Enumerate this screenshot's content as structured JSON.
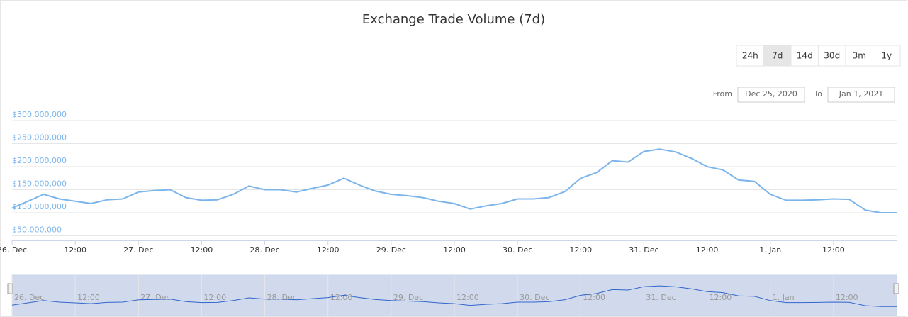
{
  "chart_data": {
    "type": "line",
    "title": "Exchange Trade Volume (7d)",
    "categories": [
      "26. Dec",
      null,
      null,
      null,
      "12:00",
      null,
      null,
      null,
      "27. Dec",
      null,
      null,
      null,
      "12:00",
      null,
      null,
      null,
      "28. Dec",
      null,
      null,
      null,
      "12:00",
      null,
      null,
      null,
      "29. Dec",
      null,
      null,
      null,
      "12:00",
      null,
      null,
      null,
      "30. Dec",
      null,
      null,
      null,
      "12:00",
      null,
      null,
      null,
      "31. Dec",
      null,
      null,
      null,
      "12:00",
      null,
      null,
      null,
      "1. Jan",
      null,
      null,
      null,
      "12:00",
      null,
      null,
      null,
      null
    ],
    "values": [
      110000000,
      125000000,
      140000000,
      130000000,
      125000000,
      120000000,
      128000000,
      130000000,
      145000000,
      148000000,
      150000000,
      133000000,
      127000000,
      128000000,
      140000000,
      158000000,
      150000000,
      150000000,
      145000000,
      153000000,
      160000000,
      175000000,
      160000000,
      147000000,
      140000000,
      137000000,
      133000000,
      125000000,
      120000000,
      108000000,
      115000000,
      120000000,
      130000000,
      130000000,
      133000000,
      146000000,
      175000000,
      187000000,
      213000000,
      210000000,
      233000000,
      238000000,
      232000000,
      218000000,
      200000000,
      193000000,
      171000000,
      168000000,
      140000000,
      127000000,
      127000000,
      128000000,
      130000000,
      129000000,
      106000000,
      100000000,
      100000000
    ],
    "color": "#7cb5ec",
    "ylim": [
      40000000,
      300000000
    ],
    "yticks": [
      {
        "value": 50000000,
        "label": "$50,000,000"
      },
      {
        "value": 100000000,
        "label": "$100,000,000"
      },
      {
        "value": 150000000,
        "label": "$150,000,000"
      },
      {
        "value": 200000000,
        "label": "$200,000,000"
      },
      {
        "value": 250000000,
        "label": "$250,000,000"
      },
      {
        "value": 300000000,
        "label": "$300,000,000"
      }
    ],
    "grid": true
  },
  "range_selector": {
    "buttons": [
      "24h",
      "7d",
      "14d",
      "30d",
      "3m",
      "1y"
    ],
    "selected": 1,
    "from_label": "From",
    "from": "Dec 25, 2020",
    "to_label": "To",
    "to": "Jan 1, 2021"
  }
}
